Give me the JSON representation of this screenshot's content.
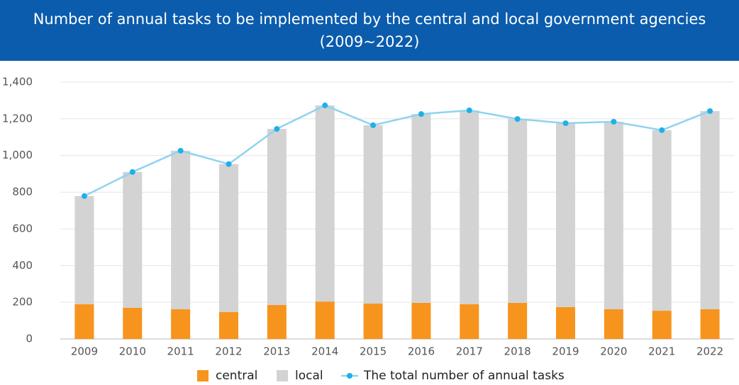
{
  "chart_data": {
    "type": "bar-line",
    "title": "Number of annual tasks to be implemented by the central and local government agencies (2009~2022)",
    "categories": [
      "2009",
      "2010",
      "2011",
      "2012",
      "2013",
      "2014",
      "2015",
      "2016",
      "2017",
      "2018",
      "2019",
      "2020",
      "2021",
      "2022"
    ],
    "series": [
      {
        "name": "central",
        "type": "bar",
        "color": "#f7941d",
        "values": [
          189,
          170,
          162,
          147,
          185,
          204,
          193,
          197,
          189,
          197,
          174,
          162,
          154,
          162
        ]
      },
      {
        "name": "local",
        "type": "bar",
        "color": "#d3d3d3",
        "values": [
          590,
          740,
          864,
          806,
          960,
          1069,
          972,
          1029,
          1057,
          1002,
          1002,
          1022,
          984,
          1080
        ]
      },
      {
        "name": "The total number of annual tasks",
        "type": "line",
        "color": "#8fd3f0",
        "marker_color": "#1fb0e8",
        "values": [
          779,
          910,
          1026,
          953,
          1145,
          1273,
          1165,
          1226,
          1246,
          1199,
          1176,
          1184,
          1138,
          1242
        ]
      }
    ],
    "stacked": true,
    "ylim": [
      0,
      1400
    ],
    "yticks": [
      0,
      200,
      400,
      600,
      800,
      {
        "value": 1000,
        "label": "1,000"
      },
      {
        "value": 1200,
        "label": "1,200"
      },
      {
        "value": 1400,
        "label": "1,400"
      }
    ],
    "grid": true,
    "legend": "bottom"
  }
}
